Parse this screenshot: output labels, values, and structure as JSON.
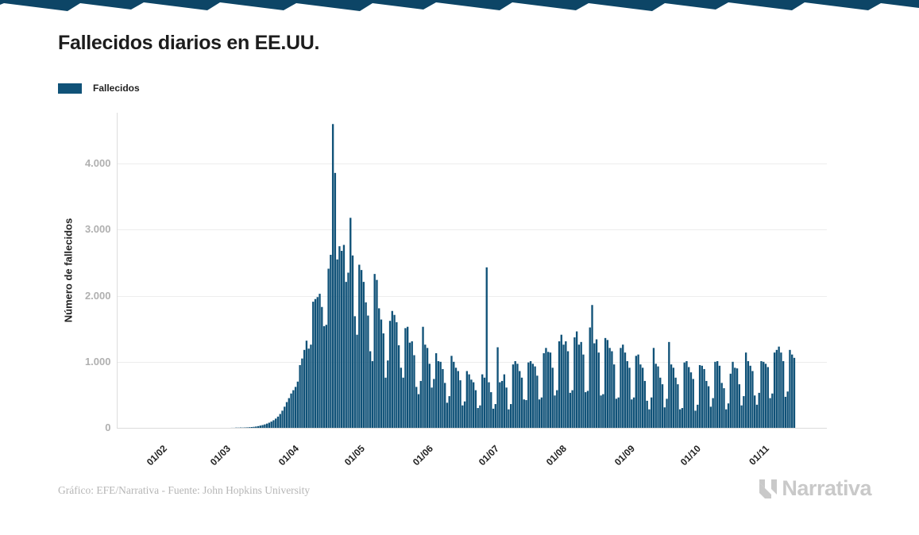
{
  "header": {
    "title": "Fallecidos diarios en EE.UU."
  },
  "legend": {
    "label": "Fallecidos",
    "color": "#105278"
  },
  "footer": {
    "credit": "Gráfico: EFE/Narrativa - Fuente: John Hopkins University",
    "brand": "Narrativa"
  },
  "colors": {
    "bar": "#105278",
    "top_band": "#0d4566",
    "gridline": "#ededed",
    "axis_line": "#dcdcdc",
    "y_tick_text": "#b0b0b0",
    "x_tick_text": "#222222",
    "brand_gray": "#c9c9c9"
  },
  "chart_data": {
    "type": "bar",
    "title": "Fallecidos diarios en EE.UU.",
    "series_name": "Fallecidos",
    "xlabel": "",
    "ylabel": "Número de fallecidos",
    "ylim": [
      0,
      4750
    ],
    "grid": "horizontal",
    "legend_position": "top-left",
    "bar_color": "#105278",
    "y_tick_values": [
      0,
      1000,
      2000,
      3000,
      4000
    ],
    "y_tick_labels": [
      "0",
      "1.000",
      "2.000",
      "3.000",
      "4.000"
    ],
    "x_tick_labels": [
      "01/02",
      "01/03",
      "01/04",
      "01/05",
      "01/06",
      "01/07",
      "01/08",
      "01/09",
      "01/10",
      "01/11"
    ],
    "x_tick_day_offsets": [
      0,
      29,
      60,
      90,
      121,
      151,
      182,
      213,
      243,
      274
    ],
    "start_date": "2020-02-01",
    "values": [
      0,
      0,
      0,
      0,
      0,
      0,
      0,
      0,
      0,
      0,
      0,
      0,
      0,
      0,
      0,
      0,
      0,
      0,
      0,
      0,
      0,
      0,
      0,
      0,
      0,
      0,
      0,
      0,
      0,
      1,
      1,
      4,
      3,
      5,
      4,
      6,
      7,
      9,
      12,
      15,
      20,
      26,
      34,
      42,
      52,
      64,
      78,
      95,
      115,
      140,
      170,
      210,
      260,
      320,
      390,
      450,
      520,
      570,
      620,
      700,
      950,
      1050,
      1180,
      1320,
      1200,
      1260,
      1910,
      1950,
      1980,
      2030,
      1830,
      1540,
      1560,
      2410,
      2620,
      4600,
      3860,
      2550,
      2750,
      2680,
      2770,
      2210,
      2350,
      3180,
      2610,
      1690,
      1410,
      2470,
      2390,
      2210,
      1900,
      1700,
      1160,
      1010,
      2330,
      2240,
      1810,
      1640,
      1430,
      760,
      1020,
      1620,
      1770,
      1710,
      1600,
      1250,
      910,
      760,
      1510,
      1530,
      1290,
      1310,
      1100,
      620,
      510,
      710,
      1530,
      1260,
      1210,
      970,
      610,
      740,
      1130,
      1010,
      1000,
      890,
      680,
      380,
      480,
      1090,
      1000,
      910,
      860,
      720,
      340,
      400,
      860,
      810,
      730,
      690,
      570,
      300,
      340,
      810,
      760,
      2430,
      690,
      540,
      290,
      360,
      1220,
      690,
      710,
      810,
      610,
      280,
      360,
      960,
      1010,
      970,
      860,
      760,
      430,
      420,
      990,
      1010,
      970,
      930,
      790,
      430,
      460,
      1130,
      1210,
      1150,
      1140,
      910,
      490,
      570,
      1310,
      1410,
      1260,
      1310,
      1160,
      530,
      570,
      1370,
      1460,
      1260,
      1300,
      1110,
      540,
      560,
      1520,
      1860,
      1280,
      1340,
      1140,
      490,
      510,
      1360,
      1330,
      1210,
      1160,
      960,
      440,
      460,
      1210,
      1260,
      1140,
      1010,
      910,
      430,
      460,
      1090,
      1110,
      960,
      910,
      710,
      410,
      280,
      460,
      1210,
      970,
      930,
      760,
      660,
      310,
      440,
      1300,
      960,
      910,
      760,
      660,
      280,
      300,
      990,
      1010,
      920,
      840,
      740,
      260,
      350,
      950,
      940,
      890,
      710,
      630,
      320,
      450,
      1000,
      1010,
      940,
      680,
      600,
      280,
      370,
      820,
      1000,
      910,
      900,
      660,
      340,
      480,
      1140,
      1010,
      940,
      860,
      490,
      350,
      530,
      1010,
      1000,
      970,
      920,
      450,
      520,
      1140,
      1180,
      1230,
      1140,
      1010,
      470,
      550,
      1180,
      1110,
      1060
    ]
  }
}
